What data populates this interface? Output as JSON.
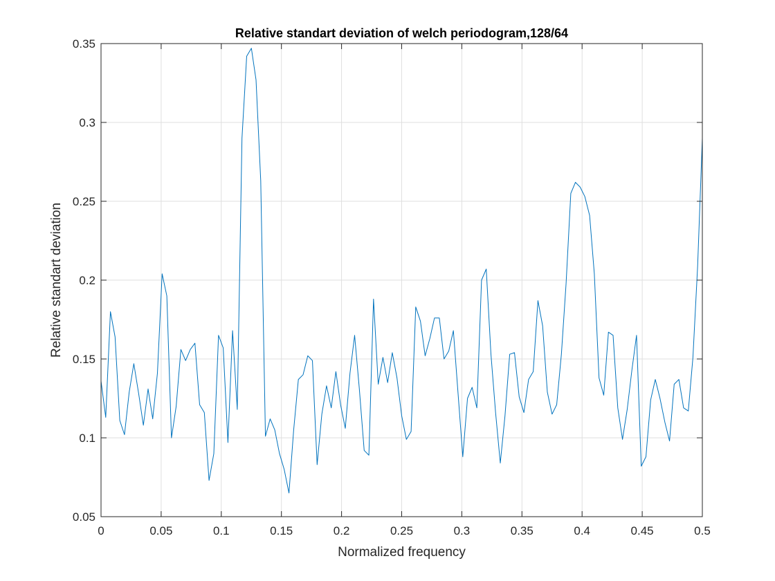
{
  "colors": {
    "background": "#ffffff",
    "axes_background": "#ffffff",
    "axis_line": "#262626",
    "grid": "#dfdfdf",
    "series": "#0072bd"
  },
  "chart_data": {
    "type": "line",
    "title": "Relative standart deviation of welch periodogram,128/64",
    "xlabel": "Normalized frequency",
    "ylabel": "Relative standart deviation",
    "xlim": [
      0,
      0.5
    ],
    "ylim": [
      0.05,
      0.35
    ],
    "xticks": [
      0,
      0.05,
      0.1,
      0.15,
      0.2,
      0.25,
      0.3,
      0.35,
      0.4,
      0.45,
      0.5
    ],
    "xtick_labels": [
      "0",
      "0.05",
      "0.1",
      "0.15",
      "0.2",
      "0.25",
      "0.3",
      "0.35",
      "0.4",
      "0.45",
      "0.5"
    ],
    "yticks": [
      0.05,
      0.1,
      0.15,
      0.2,
      0.25,
      0.3,
      0.35
    ],
    "ytick_labels": [
      "0.05",
      "0.1",
      "0.15",
      "0.2",
      "0.25",
      "0.3",
      "0.35"
    ],
    "grid": true,
    "box": true,
    "legend": "none",
    "series": [
      {
        "x": [
          0,
          0.0039,
          0.0078,
          0.0117,
          0.0156,
          0.0195,
          0.0234,
          0.0273,
          0.0313,
          0.0352,
          0.0391,
          0.043,
          0.0469,
          0.0508,
          0.0547,
          0.0586,
          0.0625,
          0.0664,
          0.0703,
          0.0742,
          0.0781,
          0.082,
          0.0859,
          0.0898,
          0.0938,
          0.0977,
          0.1016,
          0.1055,
          0.1094,
          0.1133,
          0.1172,
          0.1211,
          0.125,
          0.1289,
          0.1328,
          0.1367,
          0.1406,
          0.1445,
          0.1484,
          0.1523,
          0.1563,
          0.1602,
          0.1641,
          0.168,
          0.1719,
          0.1758,
          0.1797,
          0.1836,
          0.1875,
          0.1914,
          0.1953,
          0.1992,
          0.2031,
          0.207,
          0.2109,
          0.2148,
          0.2188,
          0.2227,
          0.2266,
          0.2305,
          0.2344,
          0.2383,
          0.2422,
          0.2461,
          0.25,
          0.2539,
          0.2578,
          0.2617,
          0.2656,
          0.2695,
          0.2734,
          0.2773,
          0.2813,
          0.2852,
          0.2891,
          0.293,
          0.2969,
          0.3008,
          0.3047,
          0.3086,
          0.3125,
          0.3164,
          0.3203,
          0.3242,
          0.3281,
          0.332,
          0.3359,
          0.3398,
          0.3438,
          0.3477,
          0.3516,
          0.3555,
          0.3594,
          0.3633,
          0.3672,
          0.3711,
          0.375,
          0.3789,
          0.3828,
          0.3867,
          0.3906,
          0.3945,
          0.3984,
          0.4023,
          0.4063,
          0.4102,
          0.4141,
          0.418,
          0.4219,
          0.4258,
          0.4297,
          0.4336,
          0.4375,
          0.4414,
          0.4453,
          0.4492,
          0.4531,
          0.457,
          0.4609,
          0.4648,
          0.4688,
          0.4727,
          0.4766,
          0.4805,
          0.4844,
          0.4883,
          0.4922,
          0.4961,
          0.5
        ],
        "y": [
          0.136,
          0.113,
          0.18,
          0.164,
          0.111,
          0.102,
          0.129,
          0.147,
          0.128,
          0.108,
          0.131,
          0.112,
          0.141,
          0.204,
          0.19,
          0.1,
          0.12,
          0.156,
          0.149,
          0.156,
          0.16,
          0.121,
          0.116,
          0.073,
          0.09,
          0.165,
          0.157,
          0.097,
          0.168,
          0.118,
          0.29,
          0.342,
          0.347,
          0.327,
          0.263,
          0.101,
          0.112,
          0.105,
          0.09,
          0.08,
          0.065,
          0.105,
          0.137,
          0.14,
          0.152,
          0.149,
          0.083,
          0.115,
          0.133,
          0.119,
          0.142,
          0.121,
          0.106,
          0.141,
          0.165,
          0.131,
          0.092,
          0.089,
          0.188,
          0.134,
          0.151,
          0.135,
          0.154,
          0.138,
          0.114,
          0.099,
          0.104,
          0.183,
          0.174,
          0.152,
          0.163,
          0.176,
          0.176,
          0.15,
          0.155,
          0.168,
          0.128,
          0.088,
          0.125,
          0.132,
          0.119,
          0.2,
          0.207,
          0.153,
          0.116,
          0.084,
          0.114,
          0.153,
          0.154,
          0.126,
          0.116,
          0.137,
          0.142,
          0.187,
          0.171,
          0.129,
          0.115,
          0.121,
          0.153,
          0.198,
          0.255,
          0.262,
          0.259,
          0.253,
          0.241,
          0.204,
          0.138,
          0.127,
          0.167,
          0.165,
          0.119,
          0.099,
          0.118,
          0.143,
          0.165,
          0.082,
          0.088,
          0.124,
          0.137,
          0.125,
          0.11,
          0.098,
          0.134,
          0.137,
          0.119,
          0.117,
          0.151,
          0.209,
          0.29
        ]
      }
    ]
  }
}
